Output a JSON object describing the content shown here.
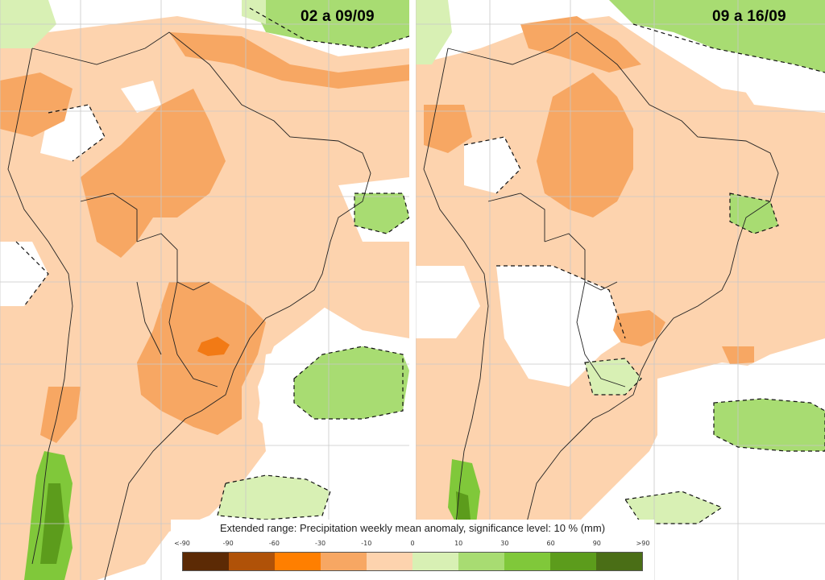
{
  "panels": [
    {
      "title": "02 a 09/09"
    },
    {
      "title": "09 a 16/09"
    }
  ],
  "legend": {
    "title": "Extended range: Precipitation weekly mean anomaly, significance level: 10 % (mm)",
    "ticks": [
      "<-90",
      "-90",
      "-60",
      "-30",
      "-10",
      "0",
      "10",
      "30",
      "60",
      "90",
      ">90"
    ],
    "colors": [
      "#5c2a05",
      "#b05208",
      "#ff7f00",
      "#f7a763",
      "#fdd3ae",
      "#d8f0b4",
      "#a8dc72",
      "#80c83a",
      "#5c9c1c",
      "#4a6e16"
    ]
  },
  "colors": {
    "ocean": "#ffffff",
    "dry_light": "#fdd3ae",
    "dry_medium": "#f7a763",
    "dry_strong": "#f27a15",
    "wet_light": "#d8f0b4",
    "wet_medium": "#a8dc72",
    "wet_strong": "#5c9c1c",
    "gridline": "#c8c8c8",
    "coastline": "#222222"
  }
}
